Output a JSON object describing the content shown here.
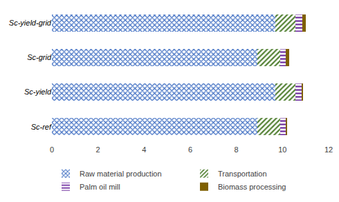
{
  "chart_data": {
    "type": "bar",
    "orientation": "horizontal",
    "stacked": true,
    "categories": [
      "Sc-ref",
      "Sc-yield",
      "Sc-grid",
      "Sc-yield-grid"
    ],
    "series": [
      {
        "name": "Raw material production",
        "color": "#4472c4",
        "values": [
          8.9,
          9.7,
          8.9,
          9.7
        ]
      },
      {
        "name": "Transportation",
        "color": "#548235",
        "values": [
          1.0,
          0.85,
          1.0,
          0.85
        ]
      },
      {
        "name": "Palm oil mill",
        "color": "#7030a0",
        "values": [
          0.25,
          0.3,
          0.25,
          0.3
        ]
      },
      {
        "name": "Biomass processing",
        "color": "#7f6000",
        "values": [
          0.05,
          0.05,
          0.15,
          0.15
        ]
      }
    ],
    "xlim": [
      0,
      12
    ],
    "xticks": [
      0,
      2,
      4,
      6,
      8,
      10,
      12
    ],
    "grid": false,
    "legend": "bottom"
  }
}
